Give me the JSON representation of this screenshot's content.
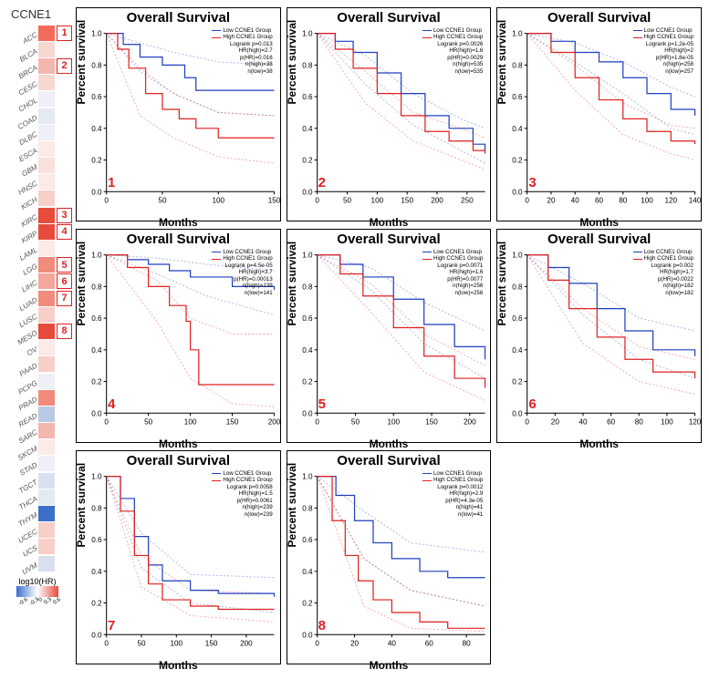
{
  "gene": "CCNE1",
  "heatmap": {
    "cancers": [
      {
        "name": "ACC",
        "color": "#f46a5a",
        "marker": 1
      },
      {
        "name": "BLCA",
        "color": "#f7d7d2"
      },
      {
        "name": "BRCA",
        "color": "#f4b7ae",
        "marker": 2
      },
      {
        "name": "CESC",
        "color": "#f7d7d2"
      },
      {
        "name": "CHOL",
        "color": "#eef0f5"
      },
      {
        "name": "COAD",
        "color": "#e4e9f2"
      },
      {
        "name": "DLBC",
        "color": "#eef0f5"
      },
      {
        "name": "ESCA",
        "color": "#fbeae7"
      },
      {
        "name": "GBM",
        "color": "#f9e0db"
      },
      {
        "name": "HNSC",
        "color": "#fbeae7"
      },
      {
        "name": "KICH",
        "color": "#f7cfc8"
      },
      {
        "name": "KIRC",
        "color": "#e64b3c",
        "marker": 3
      },
      {
        "name": "KIRP",
        "color": "#e64b3c",
        "marker": 4
      },
      {
        "name": "LAML",
        "color": "#fbeae7"
      },
      {
        "name": "LGG",
        "color": "#f08b7e",
        "marker": 5
      },
      {
        "name": "LIHC",
        "color": "#f4a79c",
        "marker": 6
      },
      {
        "name": "LUAD",
        "color": "#f08b7e",
        "marker": 7
      },
      {
        "name": "LUSC",
        "color": "#f7cfc8"
      },
      {
        "name": "MESO",
        "color": "#e64b3c",
        "marker": 8
      },
      {
        "name": "OV",
        "color": "#fbeae7"
      },
      {
        "name": "PAAD",
        "color": "#f7cfc8"
      },
      {
        "name": "PCPG",
        "color": "#eef0f5"
      },
      {
        "name": "PRAD",
        "color": "#f08b7e"
      },
      {
        "name": "READ",
        "color": "#b9c8e5"
      },
      {
        "name": "SARC",
        "color": "#f4b7ae"
      },
      {
        "name": "SKCM",
        "color": "#fbeae7"
      },
      {
        "name": "STAD",
        "color": "#eef0f5"
      },
      {
        "name": "TGCT",
        "color": "#d8e0f0"
      },
      {
        "name": "THCA",
        "color": "#e4e9f2"
      },
      {
        "name": "THYM",
        "color": "#3b6fc9"
      },
      {
        "name": "UCEC",
        "color": "#f7cfc8"
      },
      {
        "name": "UCS",
        "color": "#f7cfc8"
      },
      {
        "name": "UVM",
        "color": "#d8e0f0"
      }
    ],
    "colorbar": {
      "title": "log10(HR)",
      "ticks": [
        "-0.6",
        "-0.3",
        "0",
        "0.3",
        "0.6"
      ],
      "low_color": "#3b6fc9",
      "mid_color": "#ffffff",
      "high_color": "#e64b3c"
    }
  },
  "chart_defaults": {
    "title": "Overall Survival",
    "ylabel": "Percent survival",
    "xlabel": "Months",
    "low_label": "Low CCNE1 Group",
    "high_label": "High CCNE1 Group",
    "low_color": "#1f3fbf",
    "high_color": "#e02020",
    "ylim": [
      0,
      1
    ],
    "ytick_step": 0.2,
    "grid_color": "#000",
    "ci_opacity": 0.35,
    "line_width": 1.2
  },
  "charts": [
    {
      "panel": 1,
      "xmax": 150,
      "xtick_step": 50,
      "stats": [
        "Logrank p=0.013",
        "HR(high)=2.7",
        "p(HR)=0.016",
        "n(high)=38",
        "n(low)=38"
      ],
      "low": [
        [
          0,
          1.0
        ],
        [
          15,
          0.93
        ],
        [
          30,
          0.85
        ],
        [
          50,
          0.8
        ],
        [
          70,
          0.72
        ],
        [
          80,
          0.64
        ],
        [
          100,
          0.64
        ],
        [
          130,
          0.64
        ],
        [
          150,
          0.64
        ]
      ],
      "high": [
        [
          0,
          1.0
        ],
        [
          10,
          0.9
        ],
        [
          20,
          0.78
        ],
        [
          35,
          0.62
        ],
        [
          50,
          0.52
        ],
        [
          65,
          0.46
        ],
        [
          80,
          0.4
        ],
        [
          100,
          0.34
        ],
        [
          130,
          0.34
        ],
        [
          150,
          0.34
        ]
      ],
      "low_ci_u": [
        [
          0,
          1.0
        ],
        [
          30,
          0.94
        ],
        [
          60,
          0.88
        ],
        [
          100,
          0.82
        ],
        [
          150,
          0.8
        ]
      ],
      "low_ci_l": [
        [
          0,
          1.0
        ],
        [
          30,
          0.76
        ],
        [
          60,
          0.62
        ],
        [
          100,
          0.5
        ],
        [
          150,
          0.48
        ]
      ],
      "high_ci_u": [
        [
          0,
          1.0
        ],
        [
          30,
          0.78
        ],
        [
          60,
          0.62
        ],
        [
          100,
          0.5
        ],
        [
          150,
          0.48
        ]
      ],
      "high_ci_l": [
        [
          0,
          1.0
        ],
        [
          30,
          0.48
        ],
        [
          60,
          0.34
        ],
        [
          100,
          0.22
        ],
        [
          150,
          0.18
        ]
      ]
    },
    {
      "panel": 2,
      "xmax": 280,
      "xtick_step": 50,
      "stats": [
        "Logrank p=0.0026",
        "HR(high)=1.6",
        "p(HR)=0.0029",
        "n(high)=535",
        "n(low)=535"
      ],
      "low": [
        [
          0,
          1.0
        ],
        [
          30,
          0.95
        ],
        [
          60,
          0.88
        ],
        [
          100,
          0.75
        ],
        [
          140,
          0.62
        ],
        [
          180,
          0.48
        ],
        [
          220,
          0.4
        ],
        [
          260,
          0.3
        ],
        [
          280,
          0.26
        ]
      ],
      "high": [
        [
          0,
          1.0
        ],
        [
          30,
          0.9
        ],
        [
          60,
          0.78
        ],
        [
          100,
          0.62
        ],
        [
          140,
          0.48
        ],
        [
          180,
          0.38
        ],
        [
          220,
          0.32
        ],
        [
          260,
          0.26
        ],
        [
          280,
          0.24
        ]
      ],
      "low_ci_u": [
        [
          0,
          1.0
        ],
        [
          80,
          0.86
        ],
        [
          160,
          0.62
        ],
        [
          240,
          0.46
        ],
        [
          280,
          0.4
        ]
      ],
      "low_ci_l": [
        [
          0,
          1.0
        ],
        [
          80,
          0.68
        ],
        [
          160,
          0.42
        ],
        [
          240,
          0.26
        ],
        [
          280,
          0.18
        ]
      ],
      "high_ci_u": [
        [
          0,
          1.0
        ],
        [
          80,
          0.76
        ],
        [
          160,
          0.5
        ],
        [
          240,
          0.4
        ],
        [
          280,
          0.34
        ]
      ],
      "high_ci_l": [
        [
          0,
          1.0
        ],
        [
          80,
          0.56
        ],
        [
          160,
          0.32
        ],
        [
          240,
          0.2
        ],
        [
          280,
          0.14
        ]
      ]
    },
    {
      "panel": 3,
      "xmax": 140,
      "xtick_step": 20,
      "stats": [
        "Logrank p=1.2e-05",
        "HR(high)=2",
        "p(HR)=1.8e-05",
        "n(high)=258",
        "n(low)=257"
      ],
      "low": [
        [
          0,
          1.0
        ],
        [
          20,
          0.95
        ],
        [
          40,
          0.88
        ],
        [
          60,
          0.82
        ],
        [
          80,
          0.72
        ],
        [
          100,
          0.62
        ],
        [
          120,
          0.52
        ],
        [
          140,
          0.48
        ]
      ],
      "high": [
        [
          0,
          1.0
        ],
        [
          20,
          0.88
        ],
        [
          40,
          0.72
        ],
        [
          60,
          0.58
        ],
        [
          80,
          0.46
        ],
        [
          100,
          0.38
        ],
        [
          120,
          0.32
        ],
        [
          140,
          0.3
        ]
      ],
      "low_ci_u": [
        [
          0,
          1.0
        ],
        [
          40,
          0.94
        ],
        [
          80,
          0.82
        ],
        [
          120,
          0.66
        ],
        [
          140,
          0.6
        ]
      ],
      "low_ci_l": [
        [
          0,
          1.0
        ],
        [
          40,
          0.82
        ],
        [
          80,
          0.62
        ],
        [
          120,
          0.4
        ],
        [
          140,
          0.36
        ]
      ],
      "high_ci_u": [
        [
          0,
          1.0
        ],
        [
          40,
          0.8
        ],
        [
          80,
          0.56
        ],
        [
          120,
          0.42
        ],
        [
          140,
          0.4
        ]
      ],
      "high_ci_l": [
        [
          0,
          1.0
        ],
        [
          40,
          0.64
        ],
        [
          80,
          0.36
        ],
        [
          120,
          0.24
        ],
        [
          140,
          0.2
        ]
      ]
    },
    {
      "panel": 4,
      "xmax": 200,
      "xtick_step": 50,
      "stats": [
        "Logrank p=4.5e-05",
        "HR(high)=3.7",
        "p(HR)=0.00013",
        "n(high)=139",
        "n(low)=141"
      ],
      "low": [
        [
          0,
          1.0
        ],
        [
          25,
          0.97
        ],
        [
          50,
          0.94
        ],
        [
          75,
          0.9
        ],
        [
          100,
          0.86
        ],
        [
          150,
          0.8
        ],
        [
          200,
          0.78
        ]
      ],
      "high": [
        [
          0,
          1.0
        ],
        [
          25,
          0.92
        ],
        [
          50,
          0.8
        ],
        [
          75,
          0.68
        ],
        [
          95,
          0.58
        ],
        [
          100,
          0.4
        ],
        [
          110,
          0.18
        ],
        [
          150,
          0.18
        ],
        [
          200,
          0.18
        ]
      ],
      "low_ci_u": [
        [
          0,
          1.0
        ],
        [
          60,
          0.98
        ],
        [
          120,
          0.94
        ],
        [
          200,
          0.9
        ]
      ],
      "low_ci_l": [
        [
          0,
          1.0
        ],
        [
          60,
          0.88
        ],
        [
          120,
          0.74
        ],
        [
          200,
          0.62
        ]
      ],
      "high_ci_u": [
        [
          0,
          1.0
        ],
        [
          60,
          0.84
        ],
        [
          100,
          0.6
        ],
        [
          150,
          0.5
        ],
        [
          200,
          0.5
        ]
      ],
      "high_ci_l": [
        [
          0,
          1.0
        ],
        [
          60,
          0.58
        ],
        [
          100,
          0.22
        ],
        [
          150,
          0.06
        ],
        [
          200,
          0.04
        ]
      ]
    },
    {
      "panel": 5,
      "xmax": 220,
      "xtick_step": 50,
      "stats": [
        "Logrank p=0.0071",
        "HR(high)=1.6",
        "p(HR)=0.0077",
        "n(high)=256",
        "n(low)=256"
      ],
      "low": [
        [
          0,
          1.0
        ],
        [
          30,
          0.94
        ],
        [
          60,
          0.86
        ],
        [
          100,
          0.72
        ],
        [
          140,
          0.56
        ],
        [
          180,
          0.42
        ],
        [
          220,
          0.34
        ]
      ],
      "high": [
        [
          0,
          1.0
        ],
        [
          30,
          0.88
        ],
        [
          60,
          0.74
        ],
        [
          100,
          0.54
        ],
        [
          140,
          0.36
        ],
        [
          180,
          0.22
        ],
        [
          220,
          0.16
        ]
      ],
      "low_ci_u": [
        [
          0,
          1.0
        ],
        [
          70,
          0.92
        ],
        [
          140,
          0.7
        ],
        [
          220,
          0.52
        ]
      ],
      "low_ci_l": [
        [
          0,
          1.0
        ],
        [
          70,
          0.78
        ],
        [
          140,
          0.44
        ],
        [
          220,
          0.22
        ]
      ],
      "high_ci_u": [
        [
          0,
          1.0
        ],
        [
          70,
          0.82
        ],
        [
          140,
          0.5
        ],
        [
          220,
          0.3
        ]
      ],
      "high_ci_l": [
        [
          0,
          1.0
        ],
        [
          70,
          0.64
        ],
        [
          140,
          0.26
        ],
        [
          220,
          0.08
        ]
      ]
    },
    {
      "panel": 6,
      "xmax": 120,
      "xtick_step": 20,
      "stats": [
        "Logrank p=0.002",
        "HR(high)=1.7",
        "p(HR)=0.0022",
        "n(high)=182",
        "n(low)=182"
      ],
      "low": [
        [
          0,
          1.0
        ],
        [
          15,
          0.92
        ],
        [
          30,
          0.82
        ],
        [
          50,
          0.66
        ],
        [
          70,
          0.52
        ],
        [
          90,
          0.4
        ],
        [
          120,
          0.36
        ]
      ],
      "high": [
        [
          0,
          1.0
        ],
        [
          15,
          0.84
        ],
        [
          30,
          0.66
        ],
        [
          50,
          0.48
        ],
        [
          70,
          0.34
        ],
        [
          90,
          0.26
        ],
        [
          120,
          0.22
        ]
      ],
      "low_ci_u": [
        [
          0,
          1.0
        ],
        [
          40,
          0.82
        ],
        [
          80,
          0.6
        ],
        [
          120,
          0.52
        ]
      ],
      "low_ci_l": [
        [
          0,
          1.0
        ],
        [
          40,
          0.62
        ],
        [
          80,
          0.34
        ],
        [
          120,
          0.22
        ]
      ],
      "high_ci_u": [
        [
          0,
          1.0
        ],
        [
          40,
          0.66
        ],
        [
          80,
          0.42
        ],
        [
          120,
          0.34
        ]
      ],
      "high_ci_l": [
        [
          0,
          1.0
        ],
        [
          40,
          0.44
        ],
        [
          80,
          0.2
        ],
        [
          120,
          0.12
        ]
      ]
    },
    {
      "panel": 7,
      "xmax": 240,
      "xtick_step": 50,
      "stats": [
        "Logrank p=0.0058",
        "HR(high)=1.5",
        "p(HR)=0.0061",
        "n(high)=239",
        "n(low)=239"
      ],
      "low": [
        [
          0,
          1.0
        ],
        [
          20,
          0.86
        ],
        [
          40,
          0.62
        ],
        [
          60,
          0.44
        ],
        [
          80,
          0.34
        ],
        [
          120,
          0.28
        ],
        [
          160,
          0.26
        ],
        [
          240,
          0.24
        ]
      ],
      "high": [
        [
          0,
          1.0
        ],
        [
          20,
          0.78
        ],
        [
          40,
          0.5
        ],
        [
          60,
          0.32
        ],
        [
          80,
          0.22
        ],
        [
          120,
          0.18
        ],
        [
          160,
          0.16
        ],
        [
          240,
          0.16
        ]
      ],
      "low_ci_u": [
        [
          0,
          1.0
        ],
        [
          50,
          0.64
        ],
        [
          120,
          0.38
        ],
        [
          240,
          0.36
        ]
      ],
      "low_ci_l": [
        [
          0,
          1.0
        ],
        [
          50,
          0.42
        ],
        [
          120,
          0.2
        ],
        [
          240,
          0.14
        ]
      ],
      "high_ci_u": [
        [
          0,
          1.0
        ],
        [
          50,
          0.5
        ],
        [
          120,
          0.28
        ],
        [
          240,
          0.26
        ]
      ],
      "high_ci_l": [
        [
          0,
          1.0
        ],
        [
          50,
          0.3
        ],
        [
          120,
          0.12
        ],
        [
          240,
          0.08
        ]
      ]
    },
    {
      "panel": 8,
      "xmax": 90,
      "xtick_step": 20,
      "stats": [
        "Logrank p=0.0012",
        "HR(high)=2.9",
        "p(HR)=4.3e-05",
        "n(high)=41",
        "n(low)=41"
      ],
      "low": [
        [
          0,
          1.0
        ],
        [
          10,
          0.88
        ],
        [
          20,
          0.72
        ],
        [
          30,
          0.58
        ],
        [
          40,
          0.48
        ],
        [
          55,
          0.4
        ],
        [
          70,
          0.36
        ],
        [
          90,
          0.36
        ]
      ],
      "high": [
        [
          0,
          1.0
        ],
        [
          8,
          0.72
        ],
        [
          15,
          0.5
        ],
        [
          22,
          0.34
        ],
        [
          30,
          0.22
        ],
        [
          40,
          0.14
        ],
        [
          55,
          0.08
        ],
        [
          70,
          0.04
        ],
        [
          90,
          0.04
        ]
      ],
      "low_ci_u": [
        [
          0,
          1.0
        ],
        [
          25,
          0.78
        ],
        [
          50,
          0.58
        ],
        [
          90,
          0.52
        ]
      ],
      "low_ci_l": [
        [
          0,
          1.0
        ],
        [
          25,
          0.48
        ],
        [
          50,
          0.28
        ],
        [
          90,
          0.18
        ]
      ],
      "high_ci_u": [
        [
          0,
          1.0
        ],
        [
          25,
          0.48
        ],
        [
          50,
          0.28
        ],
        [
          90,
          0.18
        ]
      ],
      "high_ci_l": [
        [
          0,
          1.0
        ],
        [
          25,
          0.18
        ],
        [
          50,
          0.04
        ],
        [
          90,
          0.02
        ]
      ]
    }
  ]
}
